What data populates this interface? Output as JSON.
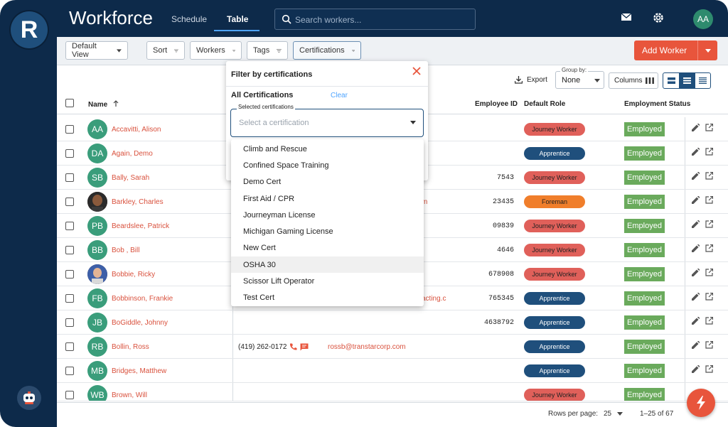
{
  "app": {
    "logo_letter": "R",
    "title": "Workforce",
    "user_initials": "AA"
  },
  "nav": {
    "tabs": [
      {
        "label": "Schedule"
      },
      {
        "label": "Table"
      }
    ]
  },
  "search": {
    "placeholder": "Search workers..."
  },
  "toolbar": {
    "view_label": "Default View",
    "sort_label": "Sort",
    "workers_label": "Workers",
    "tags_label": "Tags",
    "certifications_label": "Certifications",
    "add_worker_label": "Add Worker"
  },
  "subbar": {
    "export_label": "Export",
    "groupby_caption": "Group by:",
    "groupby_value": "None",
    "columns_label": "Columns"
  },
  "table": {
    "headers": {
      "name": "Name",
      "employee_id": "Employee ID",
      "role": "Default Role",
      "status": "Employment Status"
    },
    "rows": [
      {
        "initials": "AA",
        "name": "Accavitti, Alison",
        "emp_id": "",
        "role": "Journey Worker",
        "status": "Employed"
      },
      {
        "initials": "DA",
        "name": "Again, Demo",
        "emp_id": "",
        "role": "Apprentice",
        "status": "Employed"
      },
      {
        "initials": "SB",
        "name": "Bally, Sarah",
        "emp_id": "7543",
        "role": "Journey Worker",
        "status": "Employed"
      },
      {
        "initials": "",
        "name": "Barkley, Charles",
        "emp_id": "23435",
        "role": "Foreman",
        "status": "Employed",
        "email_fragment": "m"
      },
      {
        "initials": "PB",
        "name": "Beardslee, Patrick",
        "emp_id": "09839",
        "role": "Journey Worker",
        "status": "Employed"
      },
      {
        "initials": "BB",
        "name": "Bob , Bill",
        "emp_id": "4646",
        "role": "Journey Worker",
        "status": "Employed"
      },
      {
        "initials": "",
        "name": "Bobbie, Ricky",
        "emp_id": "678908",
        "role": "Journey Worker",
        "status": "Employed"
      },
      {
        "initials": "FB",
        "name": "Bobbinson, Frankie",
        "emp_id": "765345",
        "role": "Apprentice",
        "status": "Employed",
        "email_fragment": "acting.c"
      },
      {
        "initials": "JB",
        "name": "BoGiddle, Johnny",
        "emp_id": "4638792",
        "role": "Apprentice",
        "status": "Employed"
      },
      {
        "initials": "RB",
        "name": "Bollin, Ross",
        "emp_id": "",
        "role": "Apprentice",
        "status": "Employed",
        "phone": "(419) 262-0172",
        "email": "rossb@transtarcorp.com"
      },
      {
        "initials": "MB",
        "name": "Bridges, Matthew",
        "emp_id": "",
        "role": "Apprentice",
        "status": "Employed"
      },
      {
        "initials": "WB",
        "name": "Brown, Will",
        "emp_id": "",
        "role": "Journey Worker",
        "status": "Employed"
      }
    ]
  },
  "footer": {
    "rows_per_page_label": "Rows per page:",
    "rows_per_page": "25",
    "range": "1–25 of 67"
  },
  "filter_panel": {
    "title": "Filter by certifications",
    "all_label": "All Certifications",
    "clear_label": "Clear",
    "select_caption": "Selected certifications",
    "select_placeholder": "Select a certification",
    "options": [
      "Climb and Rescue",
      "Confined Space Training",
      "Demo Cert",
      "First Aid / CPR",
      "Journeyman License",
      "Michigan Gaming License",
      "New Cert",
      "OSHA 30",
      "Scissor Lift Operator",
      "Test Cert"
    ],
    "highlighted_option": "OSHA 30"
  },
  "colors": {
    "navy": "#0d2a4a",
    "accent_orange": "#e8553c",
    "journey_worker_badge": "#e0605a",
    "apprentice_badge": "#1f4f7c",
    "foreman_badge": "#f07e2b",
    "employed_badge": "#6aaa5c",
    "avatar_green": "#3a9d7b",
    "link_blue": "#4ea4ff"
  }
}
